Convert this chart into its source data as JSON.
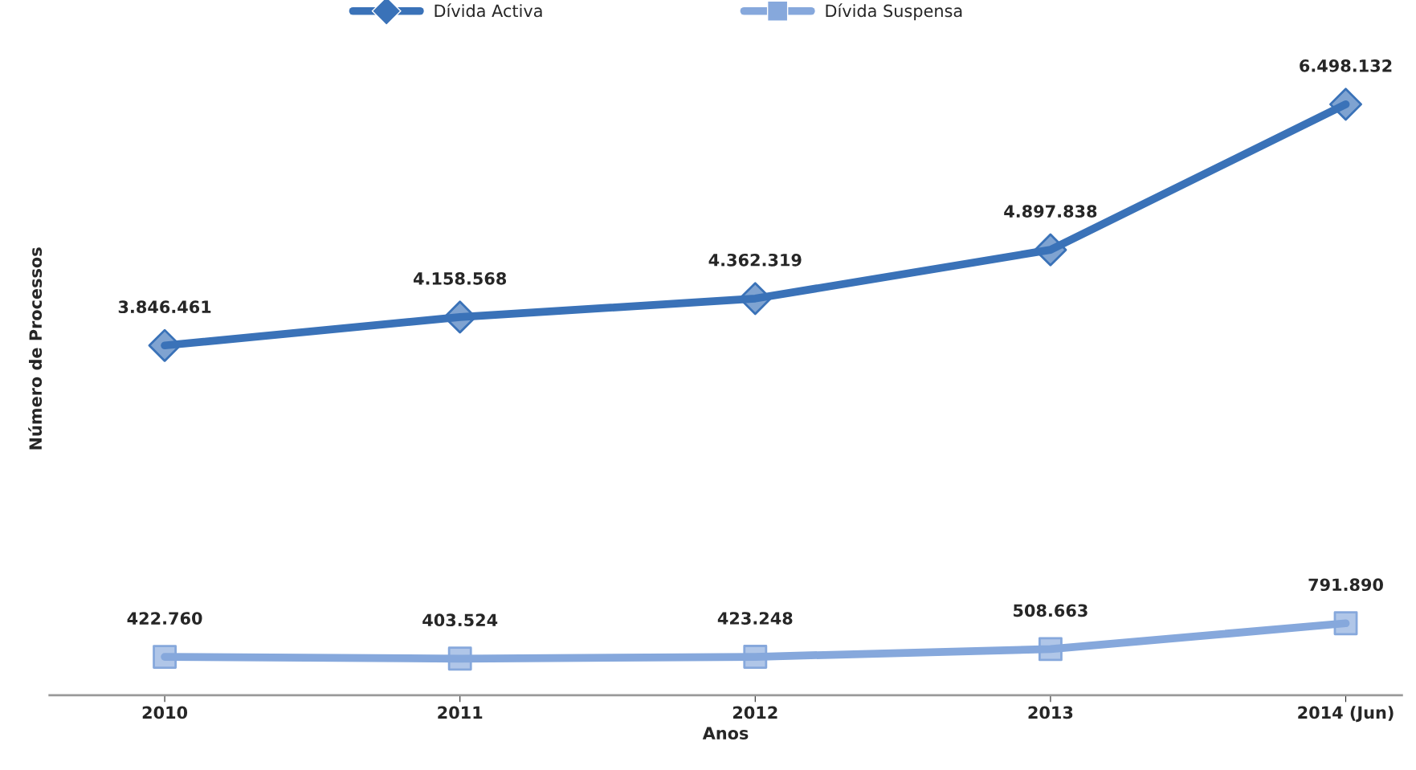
{
  "chart_data": {
    "type": "line",
    "xlabel": "Anos",
    "ylabel": "Número de Processos",
    "categories": [
      "2010",
      "2011",
      "2012",
      "2013",
      "2014 (Jun)"
    ],
    "tick_labels": "x",
    "legend": "top",
    "grid": false,
    "series": [
      {
        "name": "Dívida Activa",
        "color": "#3a72b8",
        "marker": "diamond",
        "values": [
          3846461,
          4158568,
          4362319,
          4897838,
          6498132
        ],
        "value_labels": [
          "3.846.461",
          "4.158.568",
          "4.362.319",
          "4.897.838",
          "6.498.132"
        ]
      },
      {
        "name": "Dívida Suspensa",
        "color": "#86a8dc",
        "marker": "square",
        "values": [
          422760,
          403524,
          423248,
          508663,
          791890
        ],
        "value_labels": [
          "422.760",
          "403.524",
          "423.248",
          "508.663",
          "791.890"
        ]
      }
    ]
  }
}
